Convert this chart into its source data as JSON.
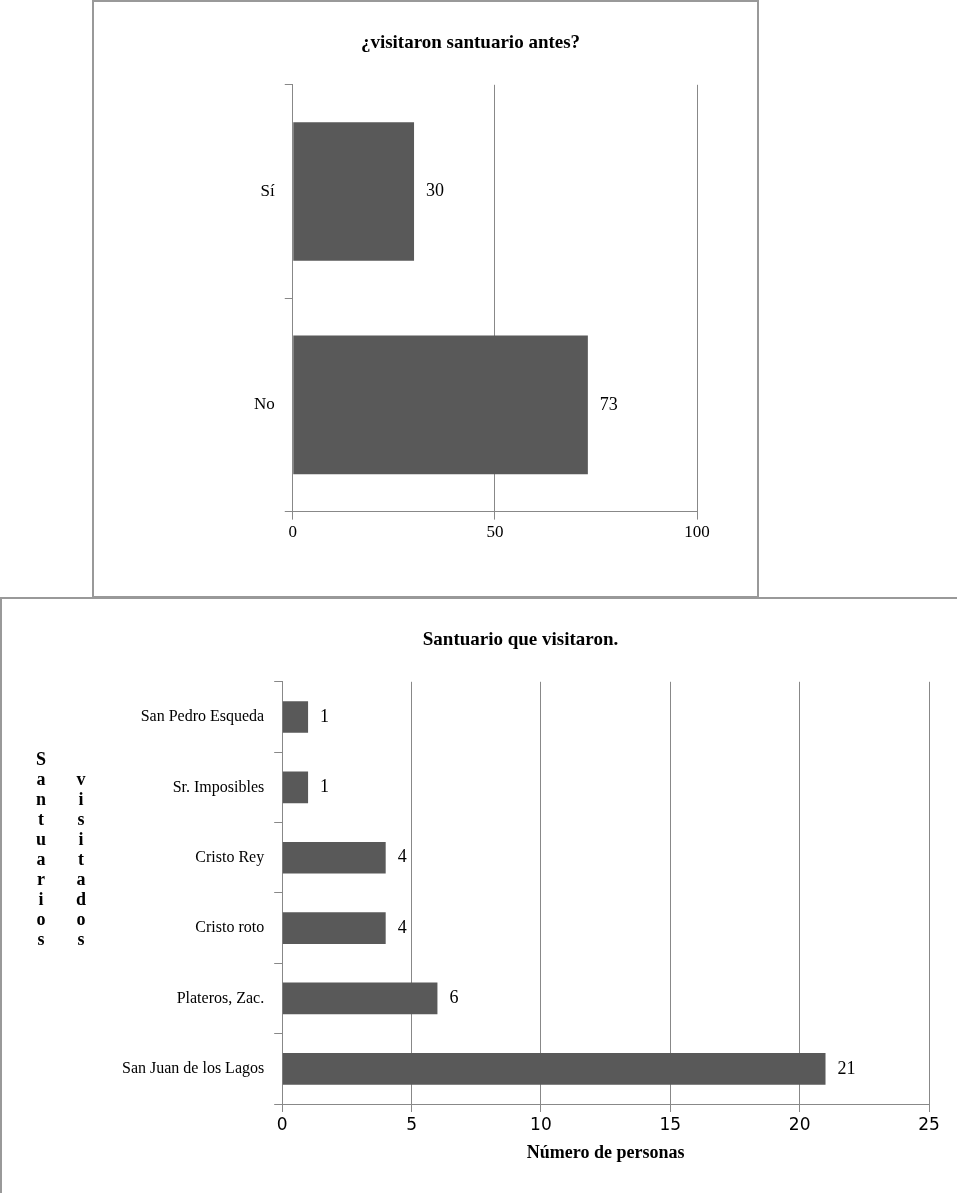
{
  "chart_data": [
    {
      "type": "bar",
      "orientation": "horizontal",
      "title": "¿visitaron santuario antes?",
      "categories": [
        "Sí",
        "No"
      ],
      "values": [
        30,
        73
      ],
      "color": "#595959",
      "xlim": [
        0,
        100
      ],
      "xticks": [
        0,
        50,
        100
      ],
      "grid": "x",
      "data_labels": true,
      "legend": false
    },
    {
      "type": "bar",
      "orientation": "horizontal",
      "title": "Santuario que visitaron.",
      "xlabel": "Número de personas",
      "ylabel": "Santuarios visitados",
      "categories": [
        "San Pedro Esqueda",
        "Sr. Imposibles",
        "Cristo Rey",
        "Cristo roto",
        "Plateros, Zac.",
        "San Juan de los Lagos"
      ],
      "values": [
        1,
        1,
        4,
        4,
        6,
        21
      ],
      "color": "#595959",
      "xlim": [
        0,
        25
      ],
      "xticks": [
        0,
        5,
        10,
        15,
        20,
        25
      ],
      "grid": "x",
      "data_labels": true,
      "legend": false
    }
  ]
}
